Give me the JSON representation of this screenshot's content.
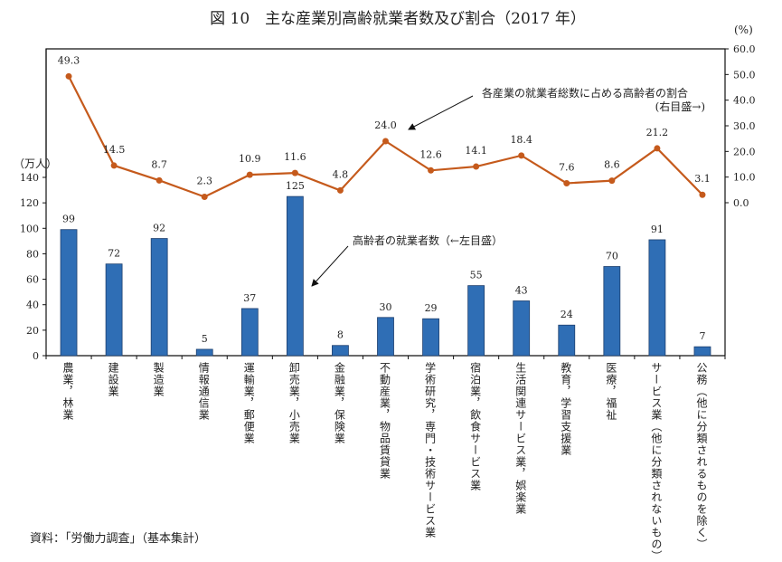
{
  "chart_data": {
    "type": "bar+line",
    "title": "図 10　主な産業別高齢就業者数及び割合（2017 年）",
    "categories": [
      "農業，林業",
      "建設業",
      "製造業",
      "情報通信業",
      "運輸業，郵便業",
      "卸売業，小売業",
      "金融業，保険業",
      "不動産業，物品賃貸業",
      "学術研究，専門・技術サービス業",
      "宿泊業，飲食サービス業",
      "生活関連サービス業，娯楽業",
      "教育，学習支援業",
      "医療，福祉",
      "サービス業（他に分類されないもの）",
      "公務（他に分類されるものを除く）"
    ],
    "series": [
      {
        "name": "高齢者の就業者数（←左目盛）",
        "type": "bar",
        "axis": "left",
        "color": "#2f6eb5",
        "values": [
          99,
          72,
          92,
          5,
          37,
          125,
          8,
          30,
          29,
          55,
          43,
          24,
          70,
          91,
          7
        ]
      },
      {
        "name": "各産業の就業者総数に占める高齢者の割合",
        "type": "line",
        "axis": "right",
        "color": "#c55a1c",
        "values": [
          49.3,
          14.5,
          8.7,
          2.3,
          10.9,
          11.6,
          4.8,
          24.0,
          12.6,
          14.1,
          18.4,
          7.6,
          8.6,
          21.2,
          3.1
        ]
      }
    ],
    "left_axis": {
      "unit": "（万人）",
      "ticks": [
        0,
        20,
        40,
        60,
        80,
        100,
        120,
        140
      ]
    },
    "right_axis": {
      "unit": "(%)",
      "ticks": [
        "0.0",
        "10.0",
        "20.0",
        "30.0",
        "40.0",
        "50.0",
        "60.0"
      ],
      "range": [
        0,
        60
      ]
    },
    "annotations": {
      "line_label": "各産業の就業者総数に占める高齢者の割合",
      "line_axis_note": "(右目盛→)",
      "bar_label": "高齢者の就業者数（←左目盛）"
    },
    "grid": false
  },
  "source": "資料：「労働力調査」（基本集計）"
}
